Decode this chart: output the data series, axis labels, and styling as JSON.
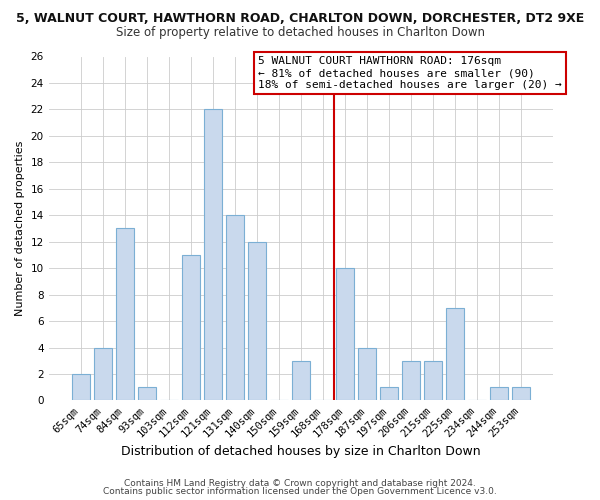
{
  "title": "5, WALNUT COURT, HAWTHORN ROAD, CHARLTON DOWN, DORCHESTER, DT2 9XE",
  "subtitle": "Size of property relative to detached houses in Charlton Down",
  "xlabel": "Distribution of detached houses by size in Charlton Down",
  "ylabel": "Number of detached properties",
  "bar_labels": [
    "65sqm",
    "74sqm",
    "84sqm",
    "93sqm",
    "103sqm",
    "112sqm",
    "121sqm",
    "131sqm",
    "140sqm",
    "150sqm",
    "159sqm",
    "168sqm",
    "178sqm",
    "187sqm",
    "197sqm",
    "206sqm",
    "215sqm",
    "225sqm",
    "234sqm",
    "244sqm",
    "253sqm"
  ],
  "bar_values": [
    2,
    4,
    13,
    1,
    0,
    11,
    22,
    14,
    12,
    0,
    3,
    0,
    10,
    4,
    1,
    3,
    3,
    7,
    0,
    1,
    1
  ],
  "bar_color": "#c9d9ed",
  "bar_edge_color": "#7bafd4",
  "ylim": [
    0,
    26
  ],
  "yticks": [
    0,
    2,
    4,
    6,
    8,
    10,
    12,
    14,
    16,
    18,
    20,
    22,
    24,
    26
  ],
  "vline_color": "#cc0000",
  "vline_index": 12,
  "annotation_line1": "5 WALNUT COURT HAWTHORN ROAD: 176sqm",
  "annotation_line2": "← 81% of detached houses are smaller (90)",
  "annotation_line3": "18% of semi-detached houses are larger (20) →",
  "annotation_box_edge": "#cc0000",
  "footer_line1": "Contains HM Land Registry data © Crown copyright and database right 2024.",
  "footer_line2": "Contains public sector information licensed under the Open Government Licence v3.0.",
  "bg_color": "#ffffff",
  "grid_color": "#cccccc",
  "title_fontsize": 9,
  "subtitle_fontsize": 8.5,
  "xlabel_fontsize": 9,
  "ylabel_fontsize": 8,
  "tick_fontsize": 7.5,
  "annotation_fontsize": 8,
  "footer_fontsize": 6.5
}
